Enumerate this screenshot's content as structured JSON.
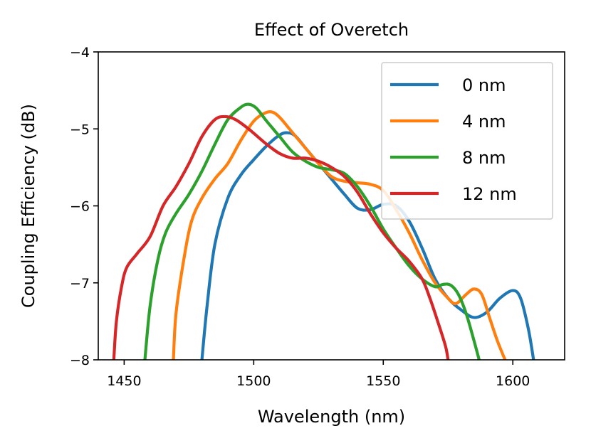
{
  "chart_data": {
    "type": "line",
    "title": "Effect of Overetch",
    "xlabel": "Wavelength (nm)",
    "ylabel": "Coupling Efficiency (dB)",
    "xlim": [
      1440,
      1620
    ],
    "ylim": [
      -8,
      -4
    ],
    "xticks": [
      1450,
      1500,
      1550,
      1600
    ],
    "yticks": [
      -8,
      -7,
      -6,
      -5,
      -4
    ],
    "xtick_labels": [
      "1450",
      "1500",
      "1550",
      "1600"
    ],
    "ytick_labels": [
      "−8",
      "−7",
      "−6",
      "−5",
      "−4"
    ],
    "grid": false,
    "legend_position": "top-right",
    "series": [
      {
        "name": "0 nm",
        "color": "#1f77b4",
        "x": [
          1480,
          1482,
          1485,
          1490,
          1495,
          1500,
          1505,
          1510,
          1513,
          1516,
          1520,
          1525,
          1530,
          1535,
          1540,
          1545,
          1550,
          1555,
          1560,
          1565,
          1570,
          1575,
          1580,
          1585,
          1590,
          1595,
          1600,
          1603,
          1606,
          1608
        ],
        "y": [
          -8.0,
          -7.3,
          -6.5,
          -5.9,
          -5.6,
          -5.4,
          -5.22,
          -5.08,
          -5.05,
          -5.09,
          -5.25,
          -5.45,
          -5.65,
          -5.85,
          -6.03,
          -6.05,
          -5.98,
          -6.0,
          -6.2,
          -6.55,
          -6.95,
          -7.2,
          -7.35,
          -7.45,
          -7.38,
          -7.2,
          -7.1,
          -7.2,
          -7.6,
          -8.0
        ]
      },
      {
        "name": "4 nm",
        "color": "#ff7f0e",
        "x": [
          1469,
          1470,
          1473,
          1476,
          1480,
          1485,
          1490,
          1495,
          1500,
          1504,
          1507,
          1510,
          1515,
          1520,
          1525,
          1530,
          1535,
          1540,
          1545,
          1550,
          1555,
          1560,
          1565,
          1570,
          1575,
          1578,
          1582,
          1585,
          1588,
          1591,
          1594,
          1597
        ],
        "y": [
          -8.0,
          -7.4,
          -6.7,
          -6.2,
          -5.9,
          -5.65,
          -5.45,
          -5.15,
          -4.9,
          -4.8,
          -4.78,
          -4.85,
          -5.05,
          -5.25,
          -5.45,
          -5.62,
          -5.68,
          -5.7,
          -5.72,
          -5.8,
          -6.05,
          -6.35,
          -6.7,
          -7.0,
          -7.2,
          -7.27,
          -7.15,
          -7.08,
          -7.15,
          -7.45,
          -7.75,
          -8.0
        ]
      },
      {
        "name": "8 nm",
        "color": "#2ca02c",
        "x": [
          1458,
          1460,
          1463,
          1466,
          1470,
          1475,
          1480,
          1485,
          1490,
          1495,
          1498,
          1501,
          1505,
          1510,
          1515,
          1520,
          1525,
          1530,
          1535,
          1540,
          1545,
          1550,
          1555,
          1560,
          1565,
          1570,
          1573,
          1576,
          1579,
          1582,
          1585,
          1587
        ],
        "y": [
          -8.0,
          -7.3,
          -6.7,
          -6.35,
          -6.1,
          -5.85,
          -5.55,
          -5.2,
          -4.88,
          -4.72,
          -4.68,
          -4.73,
          -4.9,
          -5.1,
          -5.3,
          -5.42,
          -5.5,
          -5.53,
          -5.58,
          -5.75,
          -6.0,
          -6.3,
          -6.55,
          -6.78,
          -6.95,
          -7.05,
          -7.02,
          -7.03,
          -7.15,
          -7.4,
          -7.75,
          -8.0
        ]
      },
      {
        "name": "12 nm",
        "color": "#d62728",
        "x": [
          1446,
          1447,
          1449,
          1451,
          1455,
          1460,
          1465,
          1470,
          1475,
          1480,
          1485,
          1489,
          1493,
          1498,
          1505,
          1510,
          1515,
          1520,
          1525,
          1530,
          1535,
          1540,
          1545,
          1550,
          1555,
          1560,
          1565,
          1568,
          1571,
          1574,
          1575
        ],
        "y": [
          -8.0,
          -7.5,
          -7.05,
          -6.8,
          -6.62,
          -6.4,
          -6.0,
          -5.75,
          -5.45,
          -5.1,
          -4.88,
          -4.84,
          -4.88,
          -5.0,
          -5.2,
          -5.32,
          -5.38,
          -5.38,
          -5.42,
          -5.5,
          -5.62,
          -5.82,
          -6.1,
          -6.35,
          -6.55,
          -6.72,
          -6.95,
          -7.2,
          -7.5,
          -7.82,
          -8.0
        ]
      }
    ]
  }
}
